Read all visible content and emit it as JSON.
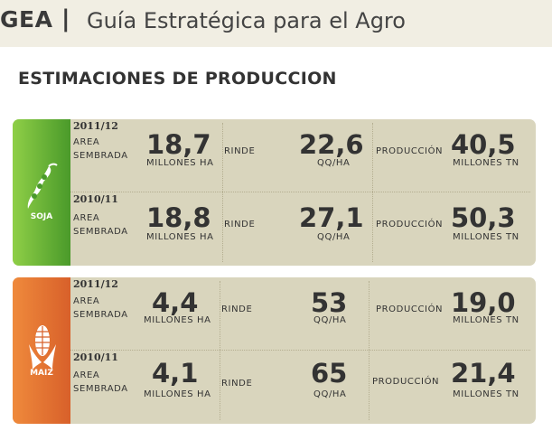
{
  "header": {
    "brand": "GEA",
    "separator": "|",
    "subtitle": "Guía Estratégica para el Agro"
  },
  "section_title": "ESTIMACIONES DE PRODUCCION",
  "crops": [
    {
      "label": "SOJA",
      "icon": "soybean-icon",
      "color": "#6bb43a",
      "rows": [
        {
          "year": "2011/12",
          "area_label_1": "AREA",
          "area_label_2": "SEMBRADA",
          "area_value": "18,7",
          "area_unit": "MILLONES HA",
          "rinde_label": "RINDE",
          "rinde_value": "22,6",
          "rinde_unit": "QQ/HA",
          "prod_label": "PRODUCCIÓN",
          "prod_value": "40,5",
          "prod_unit": "MILLONES TN"
        },
        {
          "year": "2010/11",
          "area_label_1": "AREA",
          "area_label_2": "SEMBRADA",
          "area_value": "18,8",
          "area_unit": "MILLONES HA",
          "rinde_label": "RINDE",
          "rinde_value": "27,1",
          "rinde_unit": "QQ/HA",
          "prod_label": "PRODUCCIÓN",
          "prod_value": "50,3",
          "prod_unit": "MILLONES TN"
        }
      ]
    },
    {
      "label": "MAIZ",
      "icon": "corn-icon",
      "color": "#e2702f",
      "rows": [
        {
          "year": "2011/12",
          "area_label_1": "AREA",
          "area_label_2": "SEMBRADA",
          "area_value": "4,4",
          "area_unit": "MILLONES HA",
          "rinde_label": "RINDE",
          "rinde_value": "53",
          "rinde_unit": "QQ/HA",
          "prod_label": "PRODUCCIÓN",
          "prod_value": "19,0",
          "prod_unit": "MILLONES TN"
        },
        {
          "year": "2010/11",
          "area_label_1": "AREA",
          "area_label_2": "SEMBRADA",
          "area_value": "4,1",
          "area_unit": "MILLONES HA",
          "rinde_label": "RINDE",
          "rinde_value": "65",
          "rinde_unit": "QQ/HA",
          "prod_label": "PRODUCCIÓN",
          "prod_value": "21,4",
          "prod_unit": "MILLONES TN"
        }
      ]
    }
  ]
}
